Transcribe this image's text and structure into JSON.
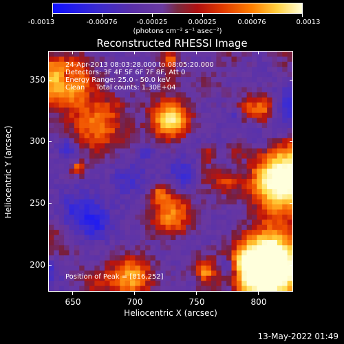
{
  "colorbar": {
    "tick_labels": [
      "-0.0013",
      "-0.00076",
      "-0.00025",
      "0.00025",
      "0.00076",
      "0.0013"
    ],
    "units": "(photons cm⁻² s⁻¹ asec⁻²)"
  },
  "title": "Reconstructed RHESSI Image",
  "info": {
    "line1": "24-Apr-2013 08:03:28.000 to 08:05:20.000",
    "line2": "Detectors: 3F 4F 5F 6F 7F 8F, Att 0",
    "line3": "Energy Range: 25.0 - 50.0 keV",
    "line4": "Clean     Total counts: 1.30E+04"
  },
  "peak_text": "Position of Peak = [816,252]",
  "axes": {
    "x_title": "Heliocentric X (arcsec)",
    "y_title": "Heliocentric Y (arcsec)",
    "x_ticks": [
      "650",
      "700",
      "750",
      "800"
    ],
    "y_ticks": [
      "350",
      "300",
      "250",
      "200"
    ]
  },
  "footer": "13-May-2022 01:49",
  "colors": {
    "low": "#1010ff",
    "mid": "#6a3aa0",
    "high": "#ffffd8"
  }
}
